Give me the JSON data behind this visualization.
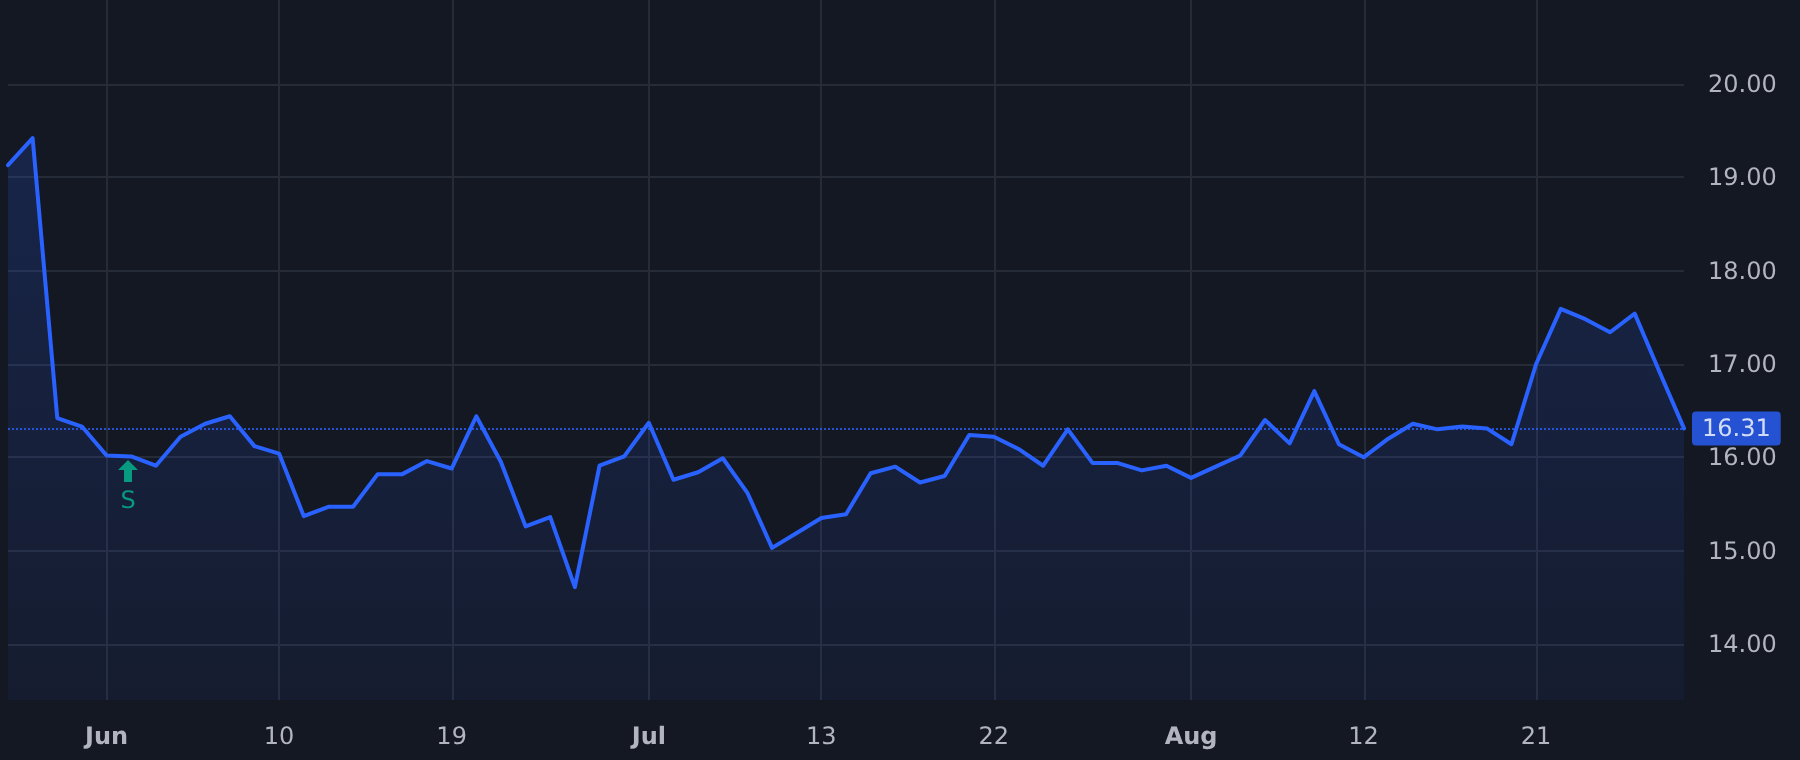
{
  "chart_data": {
    "type": "area",
    "categories": [
      null,
      null,
      null,
      null,
      "Jun",
      null,
      null,
      null,
      null,
      null,
      null,
      "10",
      null,
      null,
      null,
      null,
      null,
      null,
      "19",
      null,
      null,
      null,
      null,
      null,
      null,
      null,
      "Jul",
      null,
      null,
      null,
      null,
      null,
      null,
      "13",
      null,
      null,
      null,
      null,
      null,
      null,
      "22",
      null,
      null,
      null,
      null,
      null,
      null,
      null,
      "Aug",
      null,
      null,
      null,
      null,
      null,
      null,
      "12",
      null,
      null,
      null,
      null,
      null,
      null,
      "21",
      null,
      null,
      null,
      null,
      null,
      null
    ],
    "series": [
      {
        "color": "#2962ff",
        "values": [
          19.13,
          19.42,
          16.42,
          16.33,
          16.02,
          16.01,
          15.91,
          16.22,
          16.36,
          16.44,
          16.12,
          16.04,
          15.37,
          15.47,
          15.47,
          15.82,
          15.82,
          15.96,
          15.88,
          16.44,
          15.95,
          15.26,
          15.36,
          14.61,
          15.91,
          16.01,
          16.37,
          15.76,
          15.84,
          15.99,
          15.62,
          15.03,
          15.19,
          15.35,
          15.39,
          15.83,
          15.9,
          15.73,
          15.8,
          16.24,
          16.22,
          16.09,
          15.91,
          16.3,
          15.94,
          15.94,
          15.86,
          15.91,
          15.78,
          15.9,
          16.02,
          16.4,
          16.15,
          16.71,
          16.14,
          16.0,
          16.2,
          16.36,
          16.3,
          16.33,
          16.31,
          16.14,
          17.0,
          17.59,
          17.48,
          17.34,
          17.54,
          16.92,
          16.31
        ]
      }
    ],
    "ylim": [
      13.4,
      20.9
    ],
    "yticks": [
      {
        "value": 14,
        "label": "14.00"
      },
      {
        "value": 15,
        "label": "15.00"
      },
      {
        "value": 16,
        "label": "16.00"
      },
      {
        "value": 17,
        "label": "17.00"
      },
      {
        "value": 18,
        "label": "18.00"
      },
      {
        "value": 19,
        "label": "19.00"
      },
      {
        "value": 20,
        "label": "20.00"
      }
    ],
    "grid": true,
    "marker": "none",
    "line_style": "solid",
    "ref_lines": [
      {
        "axis": "y",
        "value": 16.31,
        "label": "16.31",
        "color": "#2962ff",
        "line_style": "dotted"
      }
    ],
    "annotations": [
      "S"
    ]
  }
}
